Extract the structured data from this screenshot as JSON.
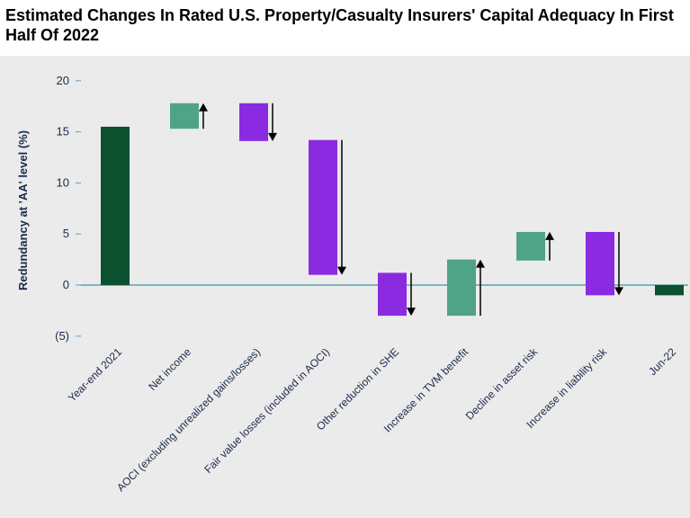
{
  "title": "Estimated Changes In Rated U.S. Property/Casualty Insurers' Capital Adequacy In First Half Of 2022",
  "colors": {
    "total": "#0b5130",
    "increase": "#4fa386",
    "decrease": "#8a2be2",
    "axis": "#5aa2aa",
    "arrow": "#000000",
    "panel": "#ebebeb"
  },
  "chart_data": {
    "type": "bar",
    "subtype": "waterfall",
    "title": "Estimated Changes In Rated U.S. Property/Casualty Insurers' Capital Adequacy In First Half Of 2022",
    "ylabel": "Redundancy at 'AA' level (%)",
    "xlabel": "",
    "ylim": [
      -5,
      20
    ],
    "yticks": [
      20,
      15,
      10,
      5,
      0,
      -5
    ],
    "ytick_labels": [
      "20",
      "15",
      "10",
      "5",
      "0",
      "(5)"
    ],
    "grid": false,
    "categories": [
      "Year-end 2021",
      "Net income",
      "AOCI (excluding unrealized gains/losses)",
      "Fair value losses (included in AOCI)",
      "Other reduction in SHE",
      "Increase in TVM benefit",
      "Decline in asset risk",
      "Increase in liability risk",
      "Jun-22"
    ],
    "bars": [
      {
        "kind": "total",
        "start": 0,
        "end": 15.5
      },
      {
        "kind": "increase",
        "start": 15.3,
        "end": 17.8
      },
      {
        "kind": "decrease",
        "start": 17.8,
        "end": 14.1
      },
      {
        "kind": "decrease",
        "start": 14.2,
        "end": 1.0
      },
      {
        "kind": "decrease",
        "start": 1.2,
        "end": -3.0
      },
      {
        "kind": "increase",
        "start": -3.0,
        "end": 2.5
      },
      {
        "kind": "increase",
        "start": 2.4,
        "end": 5.2
      },
      {
        "kind": "decrease",
        "start": 5.2,
        "end": -1.0
      },
      {
        "kind": "total",
        "start": 0,
        "end": -1.0
      }
    ]
  }
}
